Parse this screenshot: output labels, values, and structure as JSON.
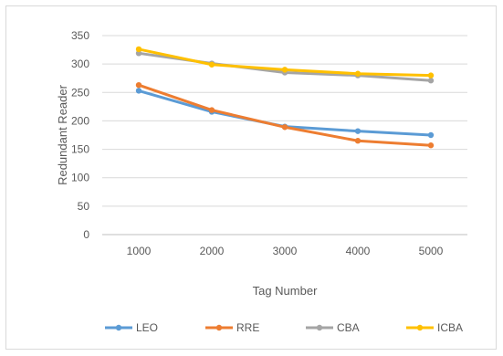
{
  "chart_data": {
    "type": "line",
    "title": "",
    "xlabel": "Tag Number",
    "ylabel": "Redundant Reader",
    "categories": [
      "1000",
      "2000",
      "3000",
      "4000",
      "5000"
    ],
    "ylim": [
      0,
      350
    ],
    "yticks": [
      0,
      50,
      100,
      150,
      200,
      250,
      300,
      350
    ],
    "grid": true,
    "legend": "bottom",
    "series": [
      {
        "name": "LEO",
        "color": "#5b9bd5",
        "values": [
          253,
          216,
          190,
          182,
          175
        ]
      },
      {
        "name": "RRE",
        "color": "#ed7d31",
        "values": [
          263,
          219,
          189,
          165,
          157
        ]
      },
      {
        "name": "CBA",
        "color": "#a5a5a5",
        "values": [
          319,
          301,
          285,
          280,
          271
        ]
      },
      {
        "name": "ICBA",
        "color": "#ffc000",
        "values": [
          326,
          299,
          290,
          283,
          280
        ]
      }
    ]
  }
}
